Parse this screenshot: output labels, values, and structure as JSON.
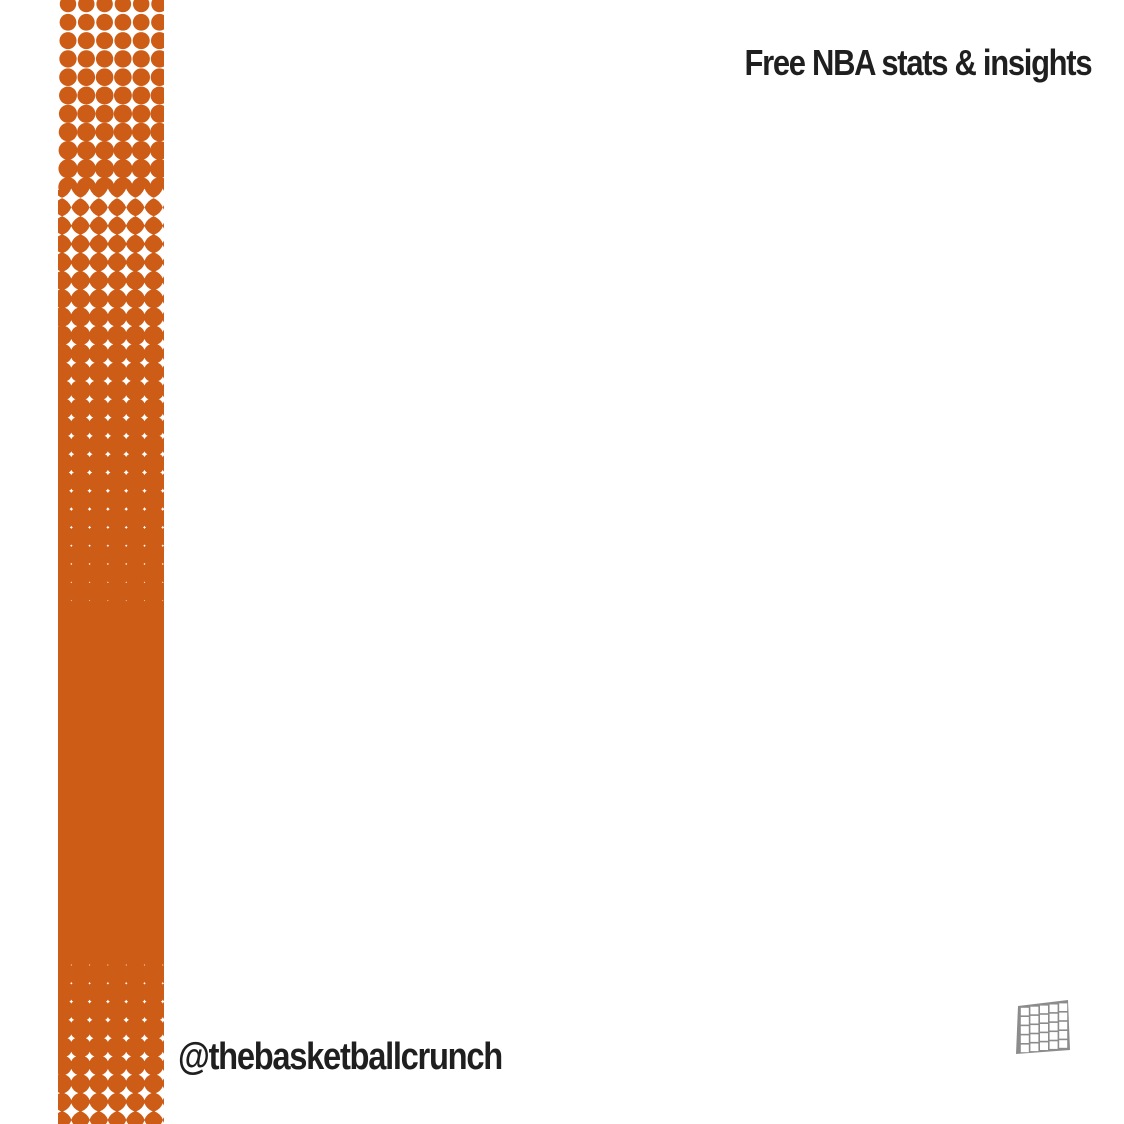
{
  "brand": {
    "tagline": "Free NBA stats & insights",
    "handle": "@thebasketballcrunch",
    "logo_icon": "grid-net-logo-icon"
  },
  "colors": {
    "accent": "#cd5c17",
    "text": "#1f1f1f",
    "background": "#ffffff",
    "logo": "#8c8c8c"
  }
}
